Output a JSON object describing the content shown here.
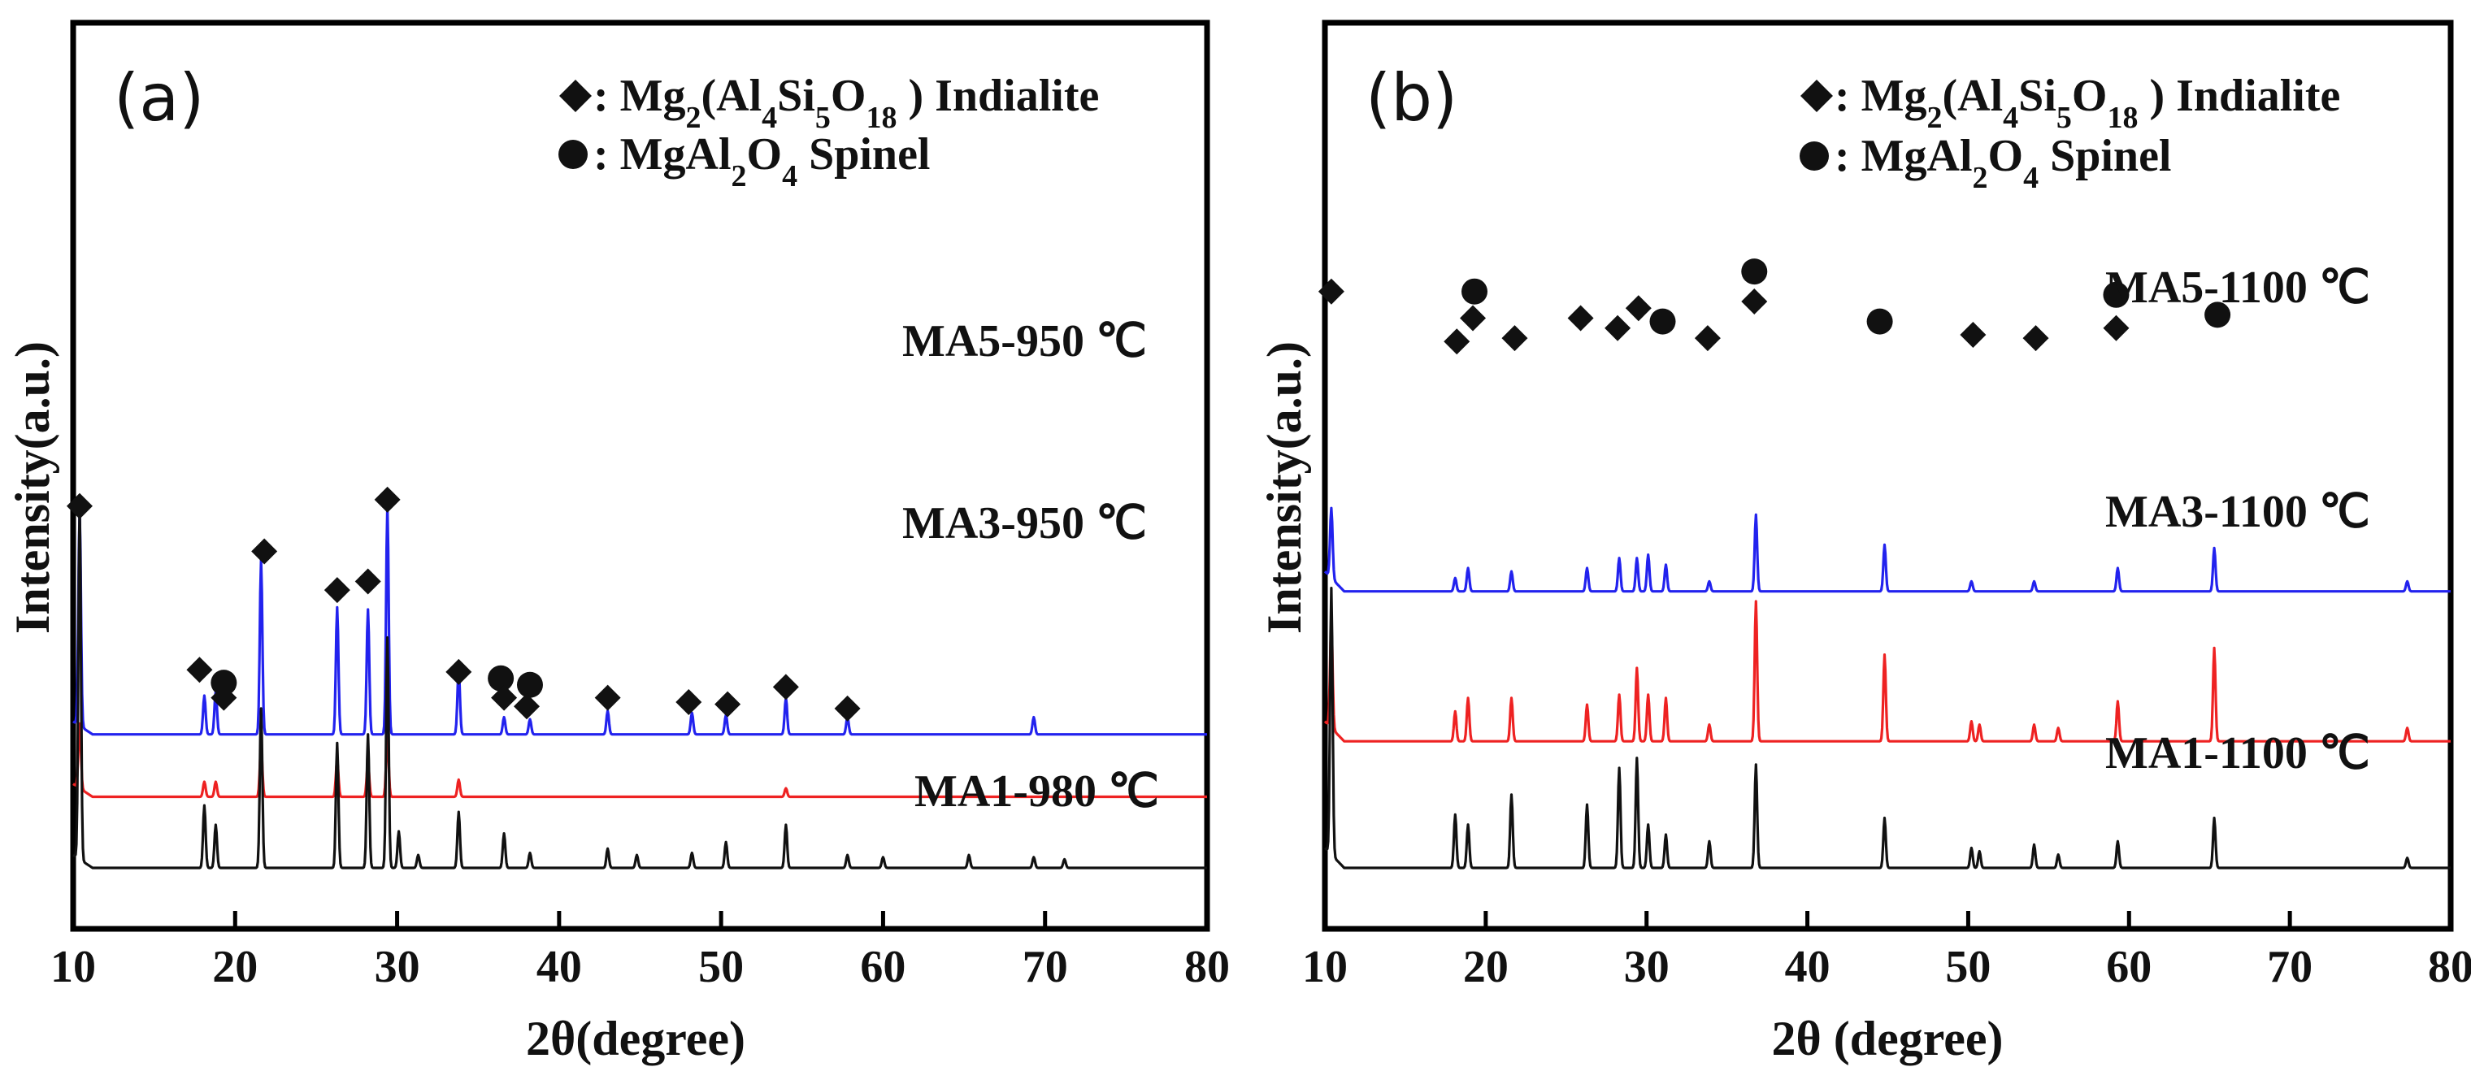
{
  "chart_data": [
    {
      "type": "line",
      "panel": "(a)",
      "xlabel": "2θ(degree)",
      "ylabel": "Intensity(a.u.)",
      "xlim": [
        10,
        80
      ],
      "xticks": [
        "10",
        "20",
        "30",
        "40",
        "50",
        "60",
        "70",
        "80"
      ],
      "legend": [
        {
          "marker": "diamond",
          "parts": [
            {
              "t": ": Mg"
            },
            {
              "t": "2",
              "sub": true
            },
            {
              "t": "(Al"
            },
            {
              "t": "4",
              "sub": true
            },
            {
              "t": "Si"
            },
            {
              "t": "5",
              "sub": true
            },
            {
              "t": "O"
            },
            {
              "t": "18",
              "sub": true
            },
            {
              "t": " ) Indialite"
            }
          ]
        },
        {
          "marker": "circle",
          "parts": [
            {
              "t": ": MgAl"
            },
            {
              "t": "2",
              "sub": true
            },
            {
              "t": "O"
            },
            {
              "t": "4",
              "sub": true
            },
            {
              "t": " Spinel"
            }
          ]
        }
      ],
      "series": [
        {
          "name": "MA5-950 ℃",
          "color": "#2222ee",
          "baseline": 0.62,
          "peaks": [
            [
              10.4,
              1.0
            ],
            [
              18.1,
              0.18
            ],
            [
              18.8,
              0.2
            ],
            [
              21.6,
              0.81
            ],
            [
              26.3,
              0.59
            ],
            [
              28.2,
              0.58
            ],
            [
              29.4,
              1.06
            ],
            [
              33.8,
              0.3
            ],
            [
              36.6,
              0.08
            ],
            [
              38.2,
              0.07
            ],
            [
              43.0,
              0.11
            ],
            [
              48.2,
              0.1
            ],
            [
              50.3,
              0.09
            ],
            [
              54.0,
              0.17
            ],
            [
              57.8,
              0.08
            ],
            [
              69.3,
              0.08
            ]
          ]
        },
        {
          "name": "MA3-950 ℃",
          "color": "#ee2222",
          "baseline": 0.33,
          "peaks": [
            [
              10.4,
              0.3
            ],
            [
              18.1,
              0.07
            ],
            [
              18.8,
              0.07
            ],
            [
              21.6,
              0.23
            ],
            [
              26.3,
              0.17
            ],
            [
              28.2,
              0.16
            ],
            [
              29.4,
              0.28
            ],
            [
              33.8,
              0.08
            ],
            [
              54.0,
              0.04
            ]
          ]
        },
        {
          "name": "MA1-980 ℃",
          "color": "#111111",
          "baseline": 0.0,
          "peaks": [
            [
              10.4,
              1.65
            ],
            [
              18.1,
              0.29
            ],
            [
              18.8,
              0.2
            ],
            [
              21.6,
              0.74
            ],
            [
              26.3,
              0.58
            ],
            [
              28.2,
              0.62
            ],
            [
              29.4,
              1.07
            ],
            [
              30.1,
              0.17
            ],
            [
              31.3,
              0.06
            ],
            [
              33.8,
              0.26
            ],
            [
              36.6,
              0.16
            ],
            [
              38.2,
              0.07
            ],
            [
              43.0,
              0.09
            ],
            [
              44.8,
              0.06
            ],
            [
              48.2,
              0.07
            ],
            [
              50.3,
              0.12
            ],
            [
              54.0,
              0.2
            ],
            [
              57.8,
              0.06
            ],
            [
              60.0,
              0.05
            ],
            [
              65.3,
              0.06
            ],
            [
              69.3,
              0.05
            ],
            [
              71.2,
              0.04
            ]
          ]
        }
      ],
      "markers": [
        {
          "shape": "diamond",
          "x": 10.4,
          "y": 1.68
        },
        {
          "shape": "diamond",
          "x": 17.8,
          "y": 0.92
        },
        {
          "shape": "circle",
          "x": 19.3,
          "y": 0.86
        },
        {
          "shape": "diamond",
          "x": 19.3,
          "y": 0.79
        },
        {
          "shape": "diamond",
          "x": 21.8,
          "y": 1.47
        },
        {
          "shape": "diamond",
          "x": 26.3,
          "y": 1.29
        },
        {
          "shape": "diamond",
          "x": 28.2,
          "y": 1.33
        },
        {
          "shape": "diamond",
          "x": 29.4,
          "y": 1.71
        },
        {
          "shape": "diamond",
          "x": 33.8,
          "y": 0.91
        },
        {
          "shape": "circle",
          "x": 36.4,
          "y": 0.88
        },
        {
          "shape": "diamond",
          "x": 36.6,
          "y": 0.79
        },
        {
          "shape": "circle",
          "x": 38.2,
          "y": 0.85
        },
        {
          "shape": "diamond",
          "x": 38.0,
          "y": 0.75
        },
        {
          "shape": "diamond",
          "x": 43.0,
          "y": 0.79
        },
        {
          "shape": "diamond",
          "x": 48.0,
          "y": 0.77
        },
        {
          "shape": "diamond",
          "x": 50.4,
          "y": 0.76
        },
        {
          "shape": "diamond",
          "x": 54.0,
          "y": 0.84
        },
        {
          "shape": "diamond",
          "x": 57.8,
          "y": 0.74
        }
      ]
    },
    {
      "type": "line",
      "panel": "(b)",
      "xlabel": "2θ (degree)",
      "ylabel": "Intensity(a.u.)",
      "xlim": [
        10,
        80
      ],
      "xticks": [
        "10",
        "20",
        "30",
        "40",
        "50",
        "60",
        "70",
        "80"
      ],
      "legend": [
        {
          "marker": "diamond",
          "parts": [
            {
              "t": ": Mg"
            },
            {
              "t": "2",
              "sub": true
            },
            {
              "t": "(Al"
            },
            {
              "t": "4",
              "sub": true
            },
            {
              "t": "Si"
            },
            {
              "t": "5",
              "sub": true
            },
            {
              "t": "O"
            },
            {
              "t": "18",
              "sub": true
            },
            {
              "t": " ) Indialite"
            }
          ]
        },
        {
          "marker": "circle",
          "parts": [
            {
              "t": ": MgAl"
            },
            {
              "t": "2",
              "sub": true
            },
            {
              "t": "O"
            },
            {
              "t": "4",
              "sub": true
            },
            {
              "t": " Spinel"
            }
          ]
        }
      ],
      "series": [
        {
          "name": "MA5-1100 ℃",
          "color": "#2222ee",
          "baseline": 0.83,
          "peaks": [
            [
              10.4,
              0.21
            ],
            [
              18.1,
              0.04
            ],
            [
              18.9,
              0.07
            ],
            [
              21.6,
              0.06
            ],
            [
              26.3,
              0.07
            ],
            [
              28.3,
              0.1
            ],
            [
              29.4,
              0.1
            ],
            [
              30.1,
              0.11
            ],
            [
              31.2,
              0.08
            ],
            [
              33.9,
              0.03
            ],
            [
              36.8,
              0.23
            ],
            [
              44.8,
              0.14
            ],
            [
              50.2,
              0.03
            ],
            [
              54.1,
              0.03
            ],
            [
              59.3,
              0.07
            ],
            [
              65.3,
              0.13
            ],
            [
              77.3,
              0.03
            ]
          ]
        },
        {
          "name": "MA3-1100 ℃",
          "color": "#ee2222",
          "baseline": 0.38,
          "peaks": [
            [
              10.4,
              0.31
            ],
            [
              18.1,
              0.09
            ],
            [
              18.9,
              0.13
            ],
            [
              21.6,
              0.13
            ],
            [
              26.3,
              0.11
            ],
            [
              28.3,
              0.14
            ],
            [
              29.4,
              0.22
            ],
            [
              30.1,
              0.14
            ],
            [
              31.2,
              0.13
            ],
            [
              33.9,
              0.05
            ],
            [
              36.8,
              0.42
            ],
            [
              44.8,
              0.26
            ],
            [
              50.2,
              0.06
            ],
            [
              50.7,
              0.05
            ],
            [
              54.1,
              0.05
            ],
            [
              55.6,
              0.04
            ],
            [
              59.3,
              0.12
            ],
            [
              65.3,
              0.28
            ],
            [
              77.3,
              0.04
            ]
          ]
        },
        {
          "name": "MA1-1100 ℃",
          "color": "#111111",
          "baseline": 0.0,
          "peaks": [
            [
              10.4,
              0.8
            ],
            [
              18.1,
              0.16
            ],
            [
              18.9,
              0.13
            ],
            [
              21.6,
              0.22
            ],
            [
              26.3,
              0.19
            ],
            [
              28.3,
              0.3
            ],
            [
              29.4,
              0.33
            ],
            [
              30.1,
              0.13
            ],
            [
              31.2,
              0.1
            ],
            [
              33.9,
              0.08
            ],
            [
              36.8,
              0.31
            ],
            [
              44.8,
              0.15
            ],
            [
              50.2,
              0.06
            ],
            [
              50.7,
              0.05
            ],
            [
              54.1,
              0.07
            ],
            [
              55.6,
              0.04
            ],
            [
              59.3,
              0.08
            ],
            [
              65.3,
              0.15
            ],
            [
              77.3,
              0.03
            ]
          ]
        }
      ],
      "markers": [
        {
          "shape": "diamond",
          "x": 10.4,
          "y": 1.73
        },
        {
          "shape": "diamond",
          "x": 18.2,
          "y": 1.58
        },
        {
          "shape": "diamond",
          "x": 19.2,
          "y": 1.65
        },
        {
          "shape": "circle",
          "x": 19.3,
          "y": 1.73
        },
        {
          "shape": "diamond",
          "x": 21.8,
          "y": 1.59
        },
        {
          "shape": "diamond",
          "x": 25.9,
          "y": 1.65
        },
        {
          "shape": "diamond",
          "x": 28.2,
          "y": 1.62
        },
        {
          "shape": "diamond",
          "x": 29.5,
          "y": 1.68
        },
        {
          "shape": "circle",
          "x": 31.0,
          "y": 1.64
        },
        {
          "shape": "diamond",
          "x": 33.8,
          "y": 1.59
        },
        {
          "shape": "circle",
          "x": 36.7,
          "y": 1.79
        },
        {
          "shape": "diamond",
          "x": 36.7,
          "y": 1.7
        },
        {
          "shape": "circle",
          "x": 44.5,
          "y": 1.64
        },
        {
          "shape": "diamond",
          "x": 50.3,
          "y": 1.6
        },
        {
          "shape": "diamond",
          "x": 54.2,
          "y": 1.59
        },
        {
          "shape": "circle",
          "x": 59.2,
          "y": 1.72
        },
        {
          "shape": "diamond",
          "x": 59.2,
          "y": 1.62
        },
        {
          "shape": "circle",
          "x": 65.5,
          "y": 1.66
        }
      ]
    }
  ]
}
